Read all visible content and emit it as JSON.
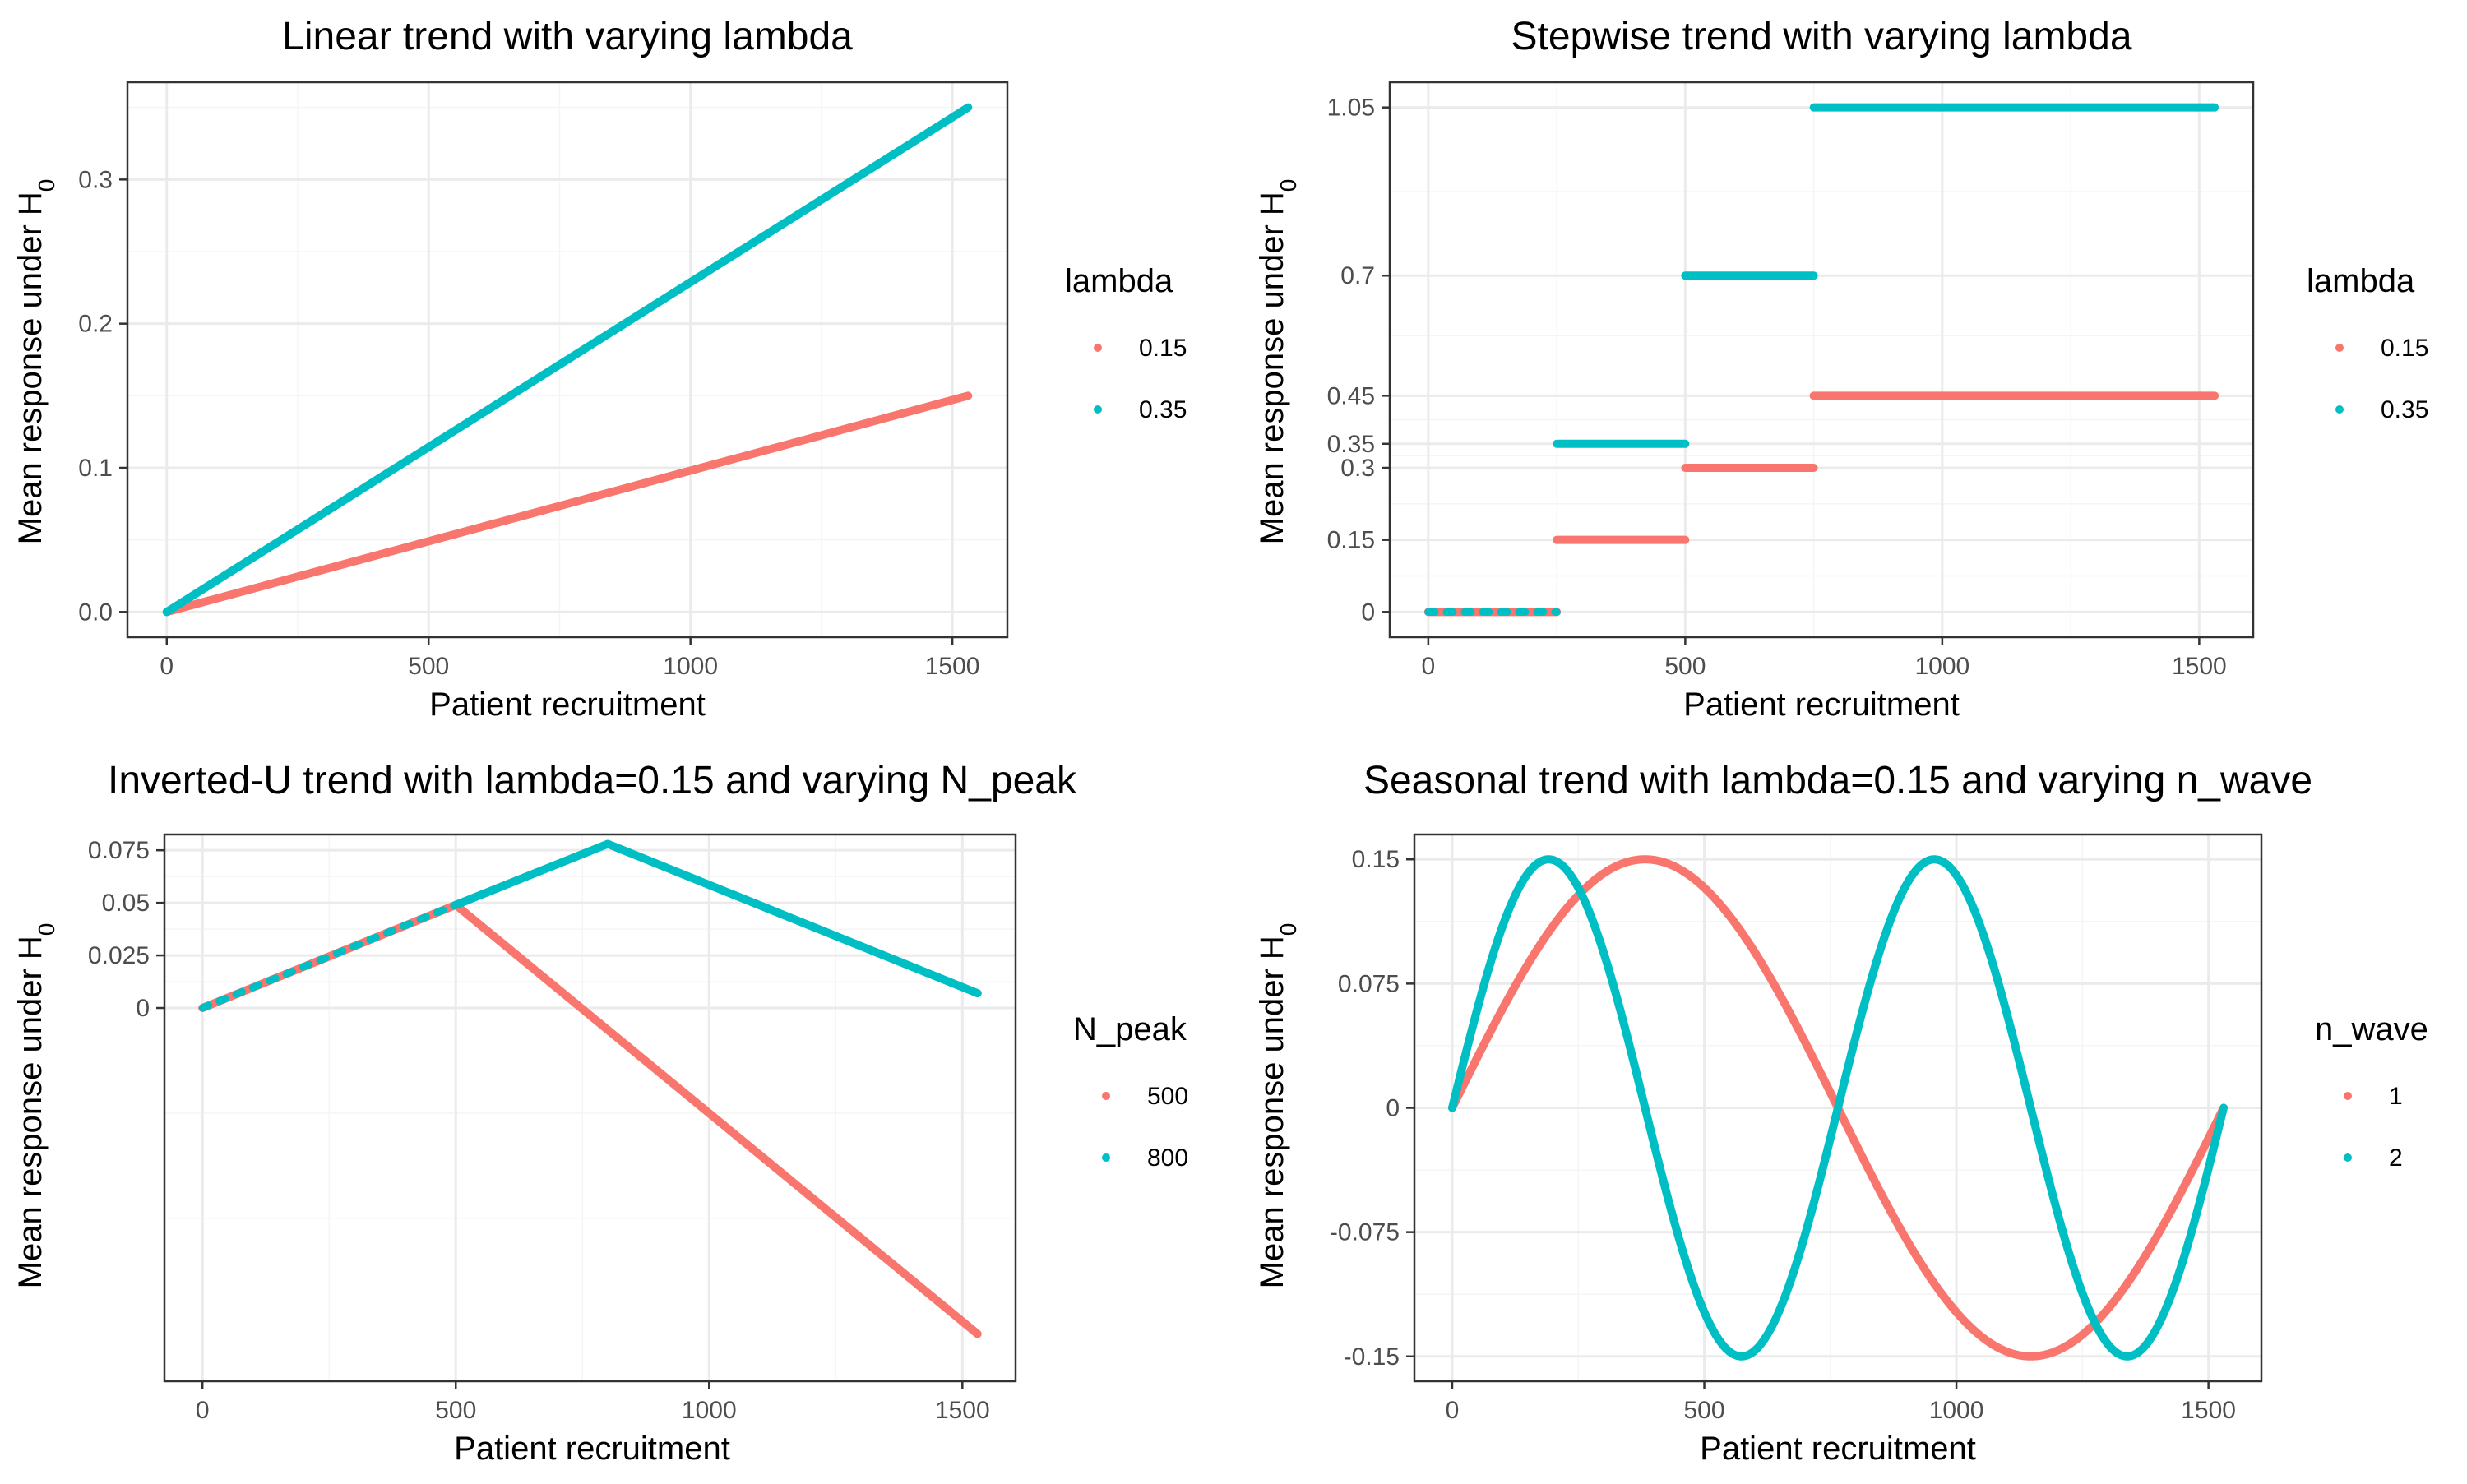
{
  "colors": {
    "red": "#F8766D",
    "teal": "#00BFC4",
    "grid_major": "#EBEBEB",
    "grid_minor": "#F5F5F5",
    "axis_text": "#4D4D4D",
    "panel_border": "#333333"
  },
  "chart_data": [
    {
      "id": "linear",
      "type": "line",
      "title": "Linear trend with varying lambda",
      "xlabel": "Patient recruitment",
      "ylabel": "Mean response under H",
      "ylabel_sub": "0",
      "xlim": [
        -75,
        1605
      ],
      "ylim": [
        -0.0175,
        0.3675
      ],
      "xticks": [
        0,
        500,
        1000,
        1500
      ],
      "xtick_labels": [
        "0",
        "500",
        "1000",
        "1500"
      ],
      "xminor": [
        250,
        750,
        1250
      ],
      "yticks": [
        0,
        0.1,
        0.2,
        0.3
      ],
      "ytick_labels": [
        "0.0",
        "0.1",
        "0.2",
        "0.3"
      ],
      "yminor": [
        0.05,
        0.15,
        0.25,
        0.35
      ],
      "legend": {
        "title": "lambda",
        "labels": [
          "0.15",
          "0.35"
        ]
      },
      "series": [
        {
          "name": "0.15",
          "color": "#F8766D",
          "points": [
            [
              0,
              0
            ],
            [
              1530,
              0.15
            ]
          ]
        },
        {
          "name": "0.35",
          "color": "#00BFC4",
          "points": [
            [
              0,
              0
            ],
            [
              1530,
              0.35
            ]
          ]
        }
      ]
    },
    {
      "id": "stepwise",
      "type": "line",
      "title": "Stepwise trend with varying lambda",
      "xlabel": "Patient recruitment",
      "ylabel": "Mean response under H",
      "ylabel_sub": "0",
      "xlim": [
        -75,
        1605
      ],
      "ylim": [
        -0.0525,
        1.1025
      ],
      "xticks": [
        0,
        500,
        1000,
        1500
      ],
      "xtick_labels": [
        "0",
        "500",
        "1000",
        "1500"
      ],
      "xminor": [
        250,
        750,
        1250
      ],
      "yticks": [
        0,
        0.15,
        0.3,
        0.35,
        0.45,
        0.7,
        1.05
      ],
      "ytick_labels": [
        "0",
        "0.15",
        "0.3",
        "0.35",
        "0.45",
        "0.7",
        "1.05"
      ],
      "yminor": [
        0.075,
        0.225,
        0.325,
        0.4,
        0.575,
        0.875
      ],
      "legend": {
        "title": "lambda",
        "labels": [
          "0.15",
          "0.35"
        ]
      },
      "step_segments": true,
      "series": [
        {
          "name": "0.15",
          "color": "#F8766D",
          "segments": [
            [
              0,
              250,
              0
            ],
            [
              250,
              500,
              0.15
            ],
            [
              500,
              750,
              0.3
            ],
            [
              750,
              1530,
              0.45
            ]
          ]
        },
        {
          "name": "0.35",
          "color": "#00BFC4",
          "dotted_first": true,
          "segments": [
            [
              0,
              250,
              0
            ],
            [
              250,
              500,
              0.35
            ],
            [
              500,
              750,
              0.7
            ],
            [
              750,
              1530,
              1.05
            ]
          ]
        }
      ]
    },
    {
      "id": "inverted_u",
      "type": "line",
      "title": "Inverted-U trend with lambda=0.15 and varying N_peak",
      "xlabel": "Patient recruitment",
      "ylabel": "Mean response under H",
      "ylabel_sub": "0",
      "xlim": [
        -75,
        1605
      ],
      "ylim": [
        -0.1775,
        0.0825
      ],
      "xticks": [
        0,
        500,
        1000,
        1500
      ],
      "xtick_labels": [
        "0",
        "500",
        "1000",
        "1500"
      ],
      "xminor": [
        250,
        750,
        1250
      ],
      "yticks": [
        0,
        0.025,
        0.05,
        0.075
      ],
      "ytick_labels": [
        "0",
        "0.025",
        "0.05",
        "0.075"
      ],
      "yminor": [
        -0.1,
        -0.05,
        0.0125,
        0.0375,
        0.0625
      ],
      "legend": {
        "title": "N_peak",
        "labels": [
          "500",
          "800"
        ]
      },
      "series": [
        {
          "name": "500",
          "color": "#F8766D",
          "points": [
            [
              0,
              0
            ],
            [
              500,
              0.049
            ],
            [
              1530,
              -0.155
            ]
          ]
        },
        {
          "name": "800",
          "color": "#00BFC4",
          "dotted_first": true,
          "points": [
            [
              0,
              0
            ],
            [
              500,
              0.049
            ],
            [
              800,
              0.078
            ],
            [
              1530,
              0.007
            ]
          ]
        }
      ]
    },
    {
      "id": "seasonal",
      "type": "line",
      "title": "Seasonal trend with lambda=0.15 and varying n_wave",
      "xlabel": "Patient recruitment",
      "ylabel": "Mean response under H",
      "ylabel_sub": "0",
      "xlim": [
        -75,
        1605
      ],
      "ylim": [
        -0.165,
        0.165
      ],
      "xticks": [
        0,
        500,
        1000,
        1500
      ],
      "xtick_labels": [
        "0",
        "500",
        "1000",
        "1500"
      ],
      "xminor": [
        250,
        750,
        1250
      ],
      "yticks": [
        -0.15,
        -0.075,
        0,
        0.075,
        0.15
      ],
      "ytick_labels": [
        "-0.15",
        "-0.075",
        "0",
        "0.075",
        "0.15"
      ],
      "yminor": [
        -0.1125,
        -0.0375,
        0.0375,
        0.1125
      ],
      "legend": {
        "title": "n_wave",
        "labels": [
          "1",
          "2"
        ]
      },
      "seasonal": {
        "amplitude": 0.15,
        "xmax": 1530
      },
      "series": [
        {
          "name": "1",
          "color": "#F8766D",
          "waves": 1
        },
        {
          "name": "2",
          "color": "#00BFC4",
          "waves": 2
        }
      ]
    }
  ]
}
